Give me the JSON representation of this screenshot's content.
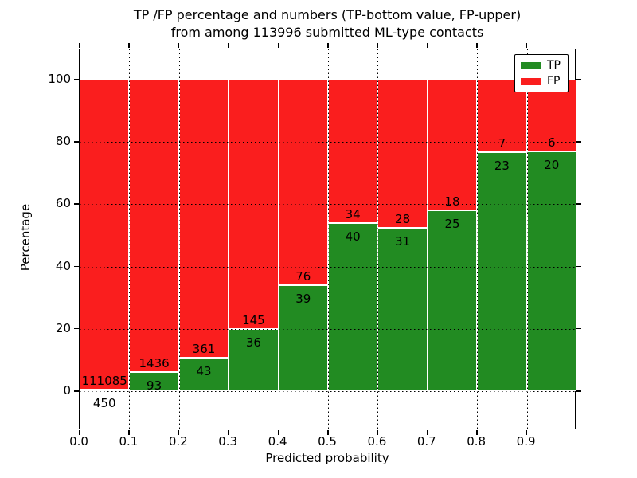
{
  "title": {
    "line1": "TP /FP percentage and numbers (TP-bottom value, FP-upper)",
    "line2": "from among 113996 submitted ML-type contacts"
  },
  "chart_data": {
    "type": "bar",
    "stacked": true,
    "normalized_to_percent": true,
    "title": "TP /FP percentage and numbers (TP-bottom value, FP-upper) from among 113996 submitted ML-type contacts",
    "xlabel": "Predicted probability",
    "ylabel": "Percentage",
    "categories": [
      "0.0",
      "0.1",
      "0.2",
      "0.3",
      "0.4",
      "0.5",
      "0.6",
      "0.7",
      "0.8",
      "0.9"
    ],
    "bin_width": 0.1,
    "total_contacts": 113996,
    "series": [
      {
        "name": "TP",
        "color": "#228b22",
        "counts": [
          450,
          93,
          43,
          36,
          39,
          40,
          31,
          25,
          23,
          20
        ]
      },
      {
        "name": "FP",
        "color": "#fa1e1e",
        "counts": [
          111085,
          1436,
          361,
          145,
          76,
          34,
          28,
          18,
          7,
          6
        ]
      }
    ],
    "tp_percent": [
      0.4,
      6.1,
      10.6,
      19.9,
      33.9,
      54.1,
      52.5,
      58.1,
      76.7,
      76.9
    ],
    "yticks": [
      "0",
      "20",
      "40",
      "60",
      "80",
      "100"
    ],
    "ytick_values": [
      0,
      20,
      40,
      60,
      80,
      100
    ],
    "ylim": [
      -12.5,
      110
    ],
    "grid": true,
    "grid_style": "dotted-black",
    "bar_edge_color": "#ffffff",
    "legend": {
      "position": "upper right",
      "entries": [
        {
          "label": "TP",
          "color": "#228b22"
        },
        {
          "label": "FP",
          "color": "#fa1e1e"
        }
      ]
    }
  }
}
